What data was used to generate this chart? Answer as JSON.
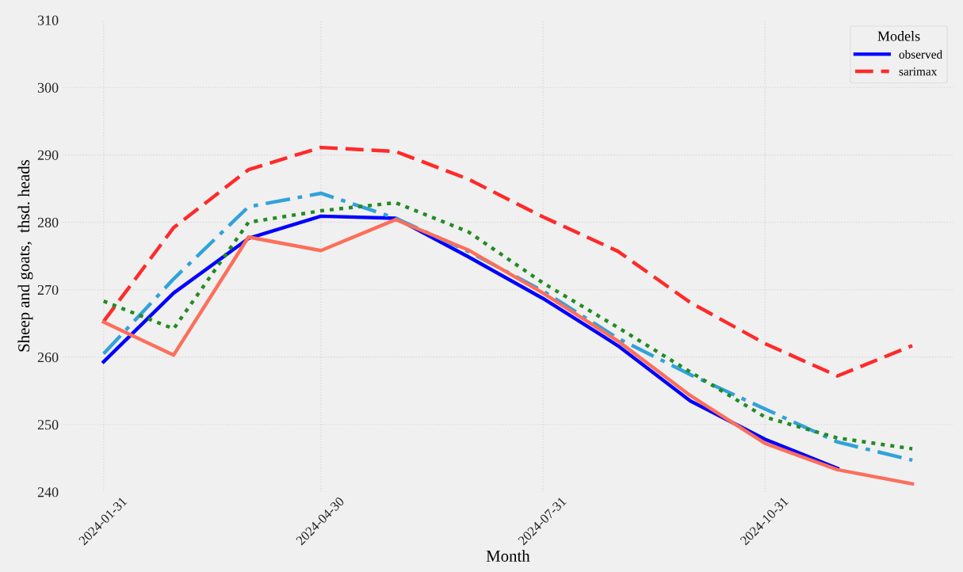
{
  "chart_data": {
    "type": "line",
    "xlabel": "Month",
    "ylabel": "Sheep and goats,  thsd. heads",
    "legend_title": "Models",
    "legend": "top right",
    "grid": true,
    "x": [
      "2024-01-31",
      "2024-02-29",
      "2024-03-31",
      "2024-04-30",
      "2024-05-31",
      "2024-06-30",
      "2024-07-31",
      "2024-08-31",
      "2024-09-30",
      "2024-10-31",
      "2024-11-30",
      "2024-12-31"
    ],
    "xlim": [
      "2024-01-14",
      "2025-01-17"
    ],
    "xticks": [
      "2024-01-31",
      "2024-04-30",
      "2024-07-31",
      "2024-10-31"
    ],
    "ylim": [
      240,
      310
    ],
    "yticks": [
      240,
      250,
      260,
      270,
      280,
      290,
      300,
      310
    ],
    "series": [
      {
        "name": "observed",
        "color": "#0000ff",
        "line_style": "solid",
        "values": [
          259.3,
          269.5,
          277.6,
          280.9,
          280.6,
          274.9,
          268.7,
          261.7,
          253.5,
          247.8,
          243.5,
          null
        ]
      },
      {
        "name": "sarimax",
        "color": "#ff2a2a",
        "line_style": "dashed",
        "values": [
          265.3,
          279.2,
          287.8,
          291.1,
          290.5,
          286.4,
          280.8,
          275.7,
          268.1,
          262.0,
          257.2,
          261.7
        ]
      },
      {
        "color": "#30a2da",
        "line_style": "dashdot",
        "values": [
          260.5,
          271.6,
          282.3,
          284.3,
          280.6,
          275.7,
          269.8,
          262.8,
          257.4,
          252.3,
          247.4,
          244.7
        ]
      },
      {
        "color": "#228b22",
        "line_style": "dotted",
        "values": [
          268.3,
          264.2,
          280.0,
          281.7,
          282.9,
          278.6,
          271.0,
          264.4,
          257.8,
          251.1,
          248.0,
          246.4
        ]
      },
      {
        "color": "#fc6f5b",
        "line_style": "solid",
        "values": [
          265.2,
          260.3,
          277.8,
          275.8,
          280.4,
          275.9,
          269.5,
          262.4,
          254.3,
          247.2,
          243.3,
          241.2
        ]
      }
    ]
  }
}
